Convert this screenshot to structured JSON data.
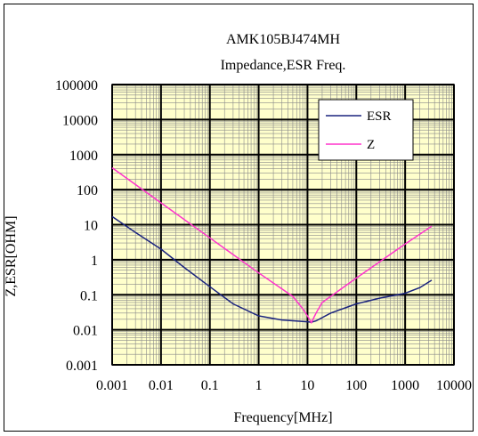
{
  "chart_data": {
    "type": "line",
    "title": "AMK105BJ474MH",
    "subtitle": "Impedance,ESR Freq.",
    "xlabel": "Frequency[MHz]",
    "ylabel": "Z,ESR[OHM]",
    "x_scale": "log",
    "y_scale": "log",
    "xlim": [
      0.001,
      10000
    ],
    "ylim": [
      0.001,
      100000
    ],
    "x_ticks": [
      "0.001",
      "0.01",
      "0.1",
      "1",
      "10",
      "100",
      "1000",
      "10000"
    ],
    "y_ticks": [
      "100000",
      "10000",
      "1000",
      "100",
      "10",
      "1",
      "0.1",
      "0.01",
      "0.001"
    ],
    "grid": true,
    "plot_background": "#ffffcc",
    "legend_position": "top-right",
    "series": [
      {
        "name": "ESR",
        "color": "#1a237e",
        "points": [
          [
            0.001,
            17
          ],
          [
            0.003,
            6
          ],
          [
            0.01,
            2
          ],
          [
            0.03,
            0.6
          ],
          [
            0.1,
            0.17
          ],
          [
            0.3,
            0.055
          ],
          [
            1,
            0.025
          ],
          [
            3,
            0.019
          ],
          [
            10,
            0.017
          ],
          [
            12,
            0.0165
          ],
          [
            15,
            0.018
          ],
          [
            30,
            0.03
          ],
          [
            100,
            0.055
          ],
          [
            300,
            0.08
          ],
          [
            1000,
            0.11
          ],
          [
            2000,
            0.16
          ],
          [
            3500,
            0.26
          ]
        ]
      },
      {
        "name": "Z",
        "color": "#ff33cc",
        "points": [
          [
            0.001,
            420
          ],
          [
            0.01,
            42
          ],
          [
            0.1,
            4.2
          ],
          [
            1,
            0.42
          ],
          [
            5,
            0.09
          ],
          [
            8,
            0.04
          ],
          [
            10,
            0.025
          ],
          [
            12,
            0.016
          ],
          [
            15,
            0.03
          ],
          [
            20,
            0.06
          ],
          [
            40,
            0.12
          ],
          [
            100,
            0.3
          ],
          [
            1000,
            2.8
          ],
          [
            3500,
            9
          ]
        ]
      }
    ]
  }
}
